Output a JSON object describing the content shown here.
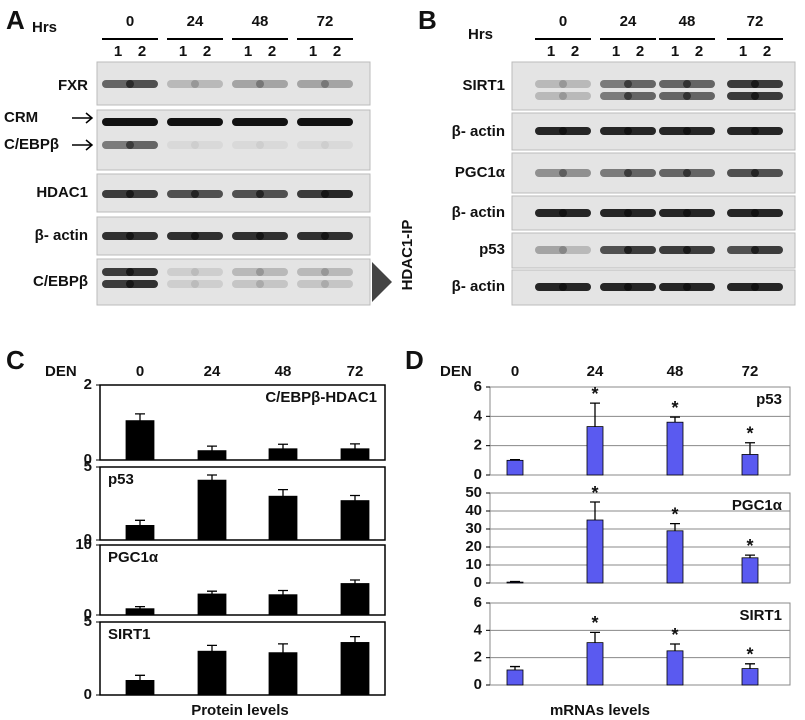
{
  "blots": [
    {
      "label": "A",
      "hrs_label": "Hrs",
      "timepoints": [
        "0",
        "24",
        "48",
        "72"
      ],
      "lanes": [
        "1",
        "2"
      ],
      "rows": [
        "FXR",
        "CRM",
        "C/EBPβ",
        "HDAC1",
        "β- actin",
        "C/EBPβ"
      ],
      "side_label": "HDAC1-IP"
    },
    {
      "label": "B",
      "hrs_label": "Hrs",
      "timepoints": [
        "0",
        "24",
        "48",
        "72"
      ],
      "lanes": [
        "1",
        "2"
      ],
      "rows": [
        "SIRT1",
        "β- actin",
        "PGC1α",
        "β- actin",
        "p53",
        "β- actin"
      ]
    }
  ],
  "chart_data": [
    {
      "type": "bar",
      "panel_label": "C",
      "x_header": "DEN",
      "categories": [
        "0",
        "24",
        "48",
        "72"
      ],
      "xlabel": "Protein levels",
      "color": "#000000",
      "grid": false,
      "subplots": [
        {
          "title": "C/EBPβ-HDAC1",
          "ylim": [
            0,
            2
          ],
          "yticks": [
            0,
            2
          ],
          "values": [
            1.05,
            0.25,
            0.3,
            0.3
          ],
          "errors": [
            0.18,
            0.12,
            0.12,
            0.13
          ]
        },
        {
          "title": "p53",
          "ylim": [
            0,
            5
          ],
          "yticks": [
            0,
            5
          ],
          "values": [
            1.0,
            4.1,
            3.0,
            2.7
          ],
          "errors": [
            0.35,
            0.35,
            0.45,
            0.35
          ]
        },
        {
          "title": "PGC1α",
          "ylim": [
            0,
            10
          ],
          "yticks": [
            0,
            10
          ],
          "values": [
            0.9,
            3.0,
            2.9,
            4.5
          ],
          "errors": [
            0.3,
            0.4,
            0.6,
            0.5
          ]
        },
        {
          "title": "SIRT1",
          "ylim": [
            0,
            5
          ],
          "yticks": [
            0,
            5
          ],
          "values": [
            1.0,
            3.0,
            2.9,
            3.6
          ],
          "errors": [
            0.35,
            0.4,
            0.6,
            0.4
          ]
        }
      ]
    },
    {
      "type": "bar",
      "panel_label": "D",
      "x_header": "DEN",
      "categories": [
        "0",
        "24",
        "48",
        "72"
      ],
      "xlabel": "mRNAs levels",
      "color": "#5a5af0",
      "grid": true,
      "subplots": [
        {
          "title": "p53",
          "ylim": [
            0,
            6
          ],
          "yticks": [
            0,
            2,
            4,
            6
          ],
          "values": [
            1.0,
            3.3,
            3.6,
            1.4
          ],
          "errors": [
            0.05,
            1.6,
            0.35,
            0.8
          ],
          "significance": [
            null,
            "*",
            "*",
            "*"
          ]
        },
        {
          "title": "PGC1α",
          "ylim": [
            0,
            50
          ],
          "yticks": [
            0,
            10,
            20,
            30,
            40,
            50
          ],
          "values": [
            0.5,
            35,
            29,
            14
          ],
          "errors": [
            0.3,
            10,
            4,
            1.5
          ],
          "significance": [
            null,
            "*",
            "*",
            "*"
          ]
        },
        {
          "title": "SIRT1",
          "ylim": [
            0,
            6
          ],
          "yticks": [
            0,
            2,
            4,
            6
          ],
          "values": [
            1.1,
            3.1,
            2.5,
            1.2
          ],
          "errors": [
            0.25,
            0.75,
            0.5,
            0.35
          ],
          "significance": [
            null,
            "*",
            "*",
            "*"
          ]
        }
      ]
    }
  ]
}
